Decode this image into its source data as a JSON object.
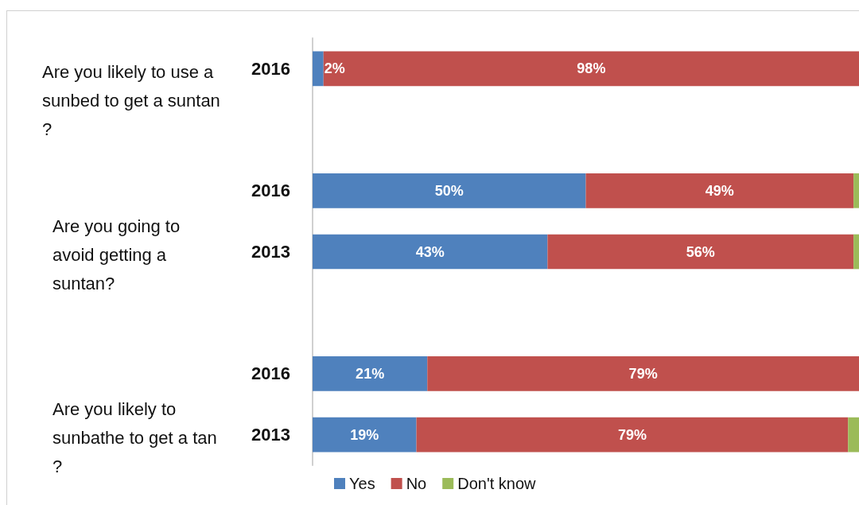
{
  "chart_data": {
    "type": "bar",
    "orientation": "horizontal",
    "stacked": true,
    "categories": [
      "2016",
      null,
      "2016",
      "2013",
      null,
      "2016",
      "2013"
    ],
    "series": [
      {
        "name": "Yes",
        "color": "#4f81bd",
        "values": [
          2,
          null,
          50,
          43,
          null,
          21,
          19
        ],
        "value_labels": [
          "2%",
          null,
          "50%",
          "43%",
          null,
          "21%",
          "19%"
        ]
      },
      {
        "name": "No",
        "color": "#c0504d",
        "values": [
          98,
          null,
          49,
          56,
          null,
          79,
          79
        ],
        "value_labels": [
          "98%",
          null,
          "49%",
          "56%",
          null,
          "79%",
          "79%"
        ]
      },
      {
        "name": "Don't know",
        "color": "#9bbb59",
        "values": [
          0,
          null,
          1,
          1,
          null,
          0,
          2
        ]
      }
    ],
    "xlim": [
      0,
      100
    ],
    "tick_labels": "y",
    "grid": false,
    "legend": "bottom",
    "annotations": [
      "Are you likely to use a sunbed to get a suntan?",
      "Are you going to avoid getting a suntan?",
      "Are you likely to sunbathe to get a tan?"
    ]
  }
}
